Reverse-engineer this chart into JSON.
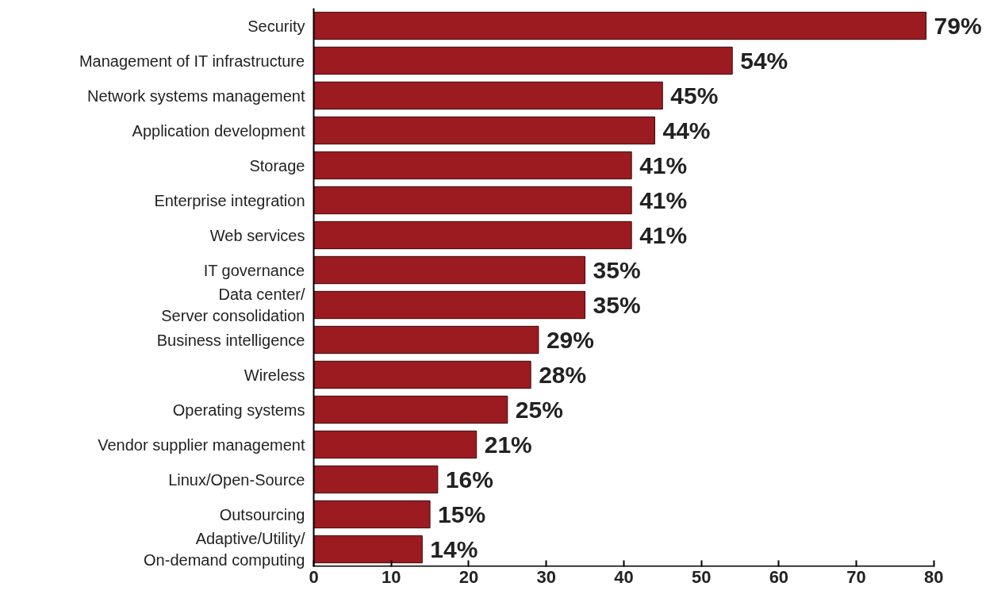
{
  "chart_data": {
    "type": "bar",
    "orientation": "horizontal",
    "categories": [
      "Security",
      "Management of IT infrastructure",
      "Network systems management",
      "Application development",
      "Storage",
      "Enterprise integration",
      "Web services",
      "IT governance",
      "Data center/\nServer consolidation",
      "Business intelligence",
      "Wireless",
      "Operating systems",
      "Vendor supplier management",
      "Linux/Open-Source",
      "Outsourcing",
      "Adaptive/Utility/\nOn-demand computing"
    ],
    "values": [
      79,
      54,
      45,
      44,
      41,
      41,
      41,
      35,
      35,
      29,
      28,
      25,
      21,
      16,
      15,
      14
    ],
    "value_labels": [
      "79%",
      "54%",
      "45%",
      "44%",
      "41%",
      "41%",
      "41%",
      "35%",
      "35%",
      "29%",
      "28%",
      "25%",
      "21%",
      "16%",
      "15%",
      "14%"
    ],
    "color": "#9b1b20",
    "xlim": [
      0,
      80
    ],
    "xticks": [
      0,
      10,
      20,
      30,
      40,
      50,
      60,
      70,
      80
    ],
    "grid": false
  }
}
